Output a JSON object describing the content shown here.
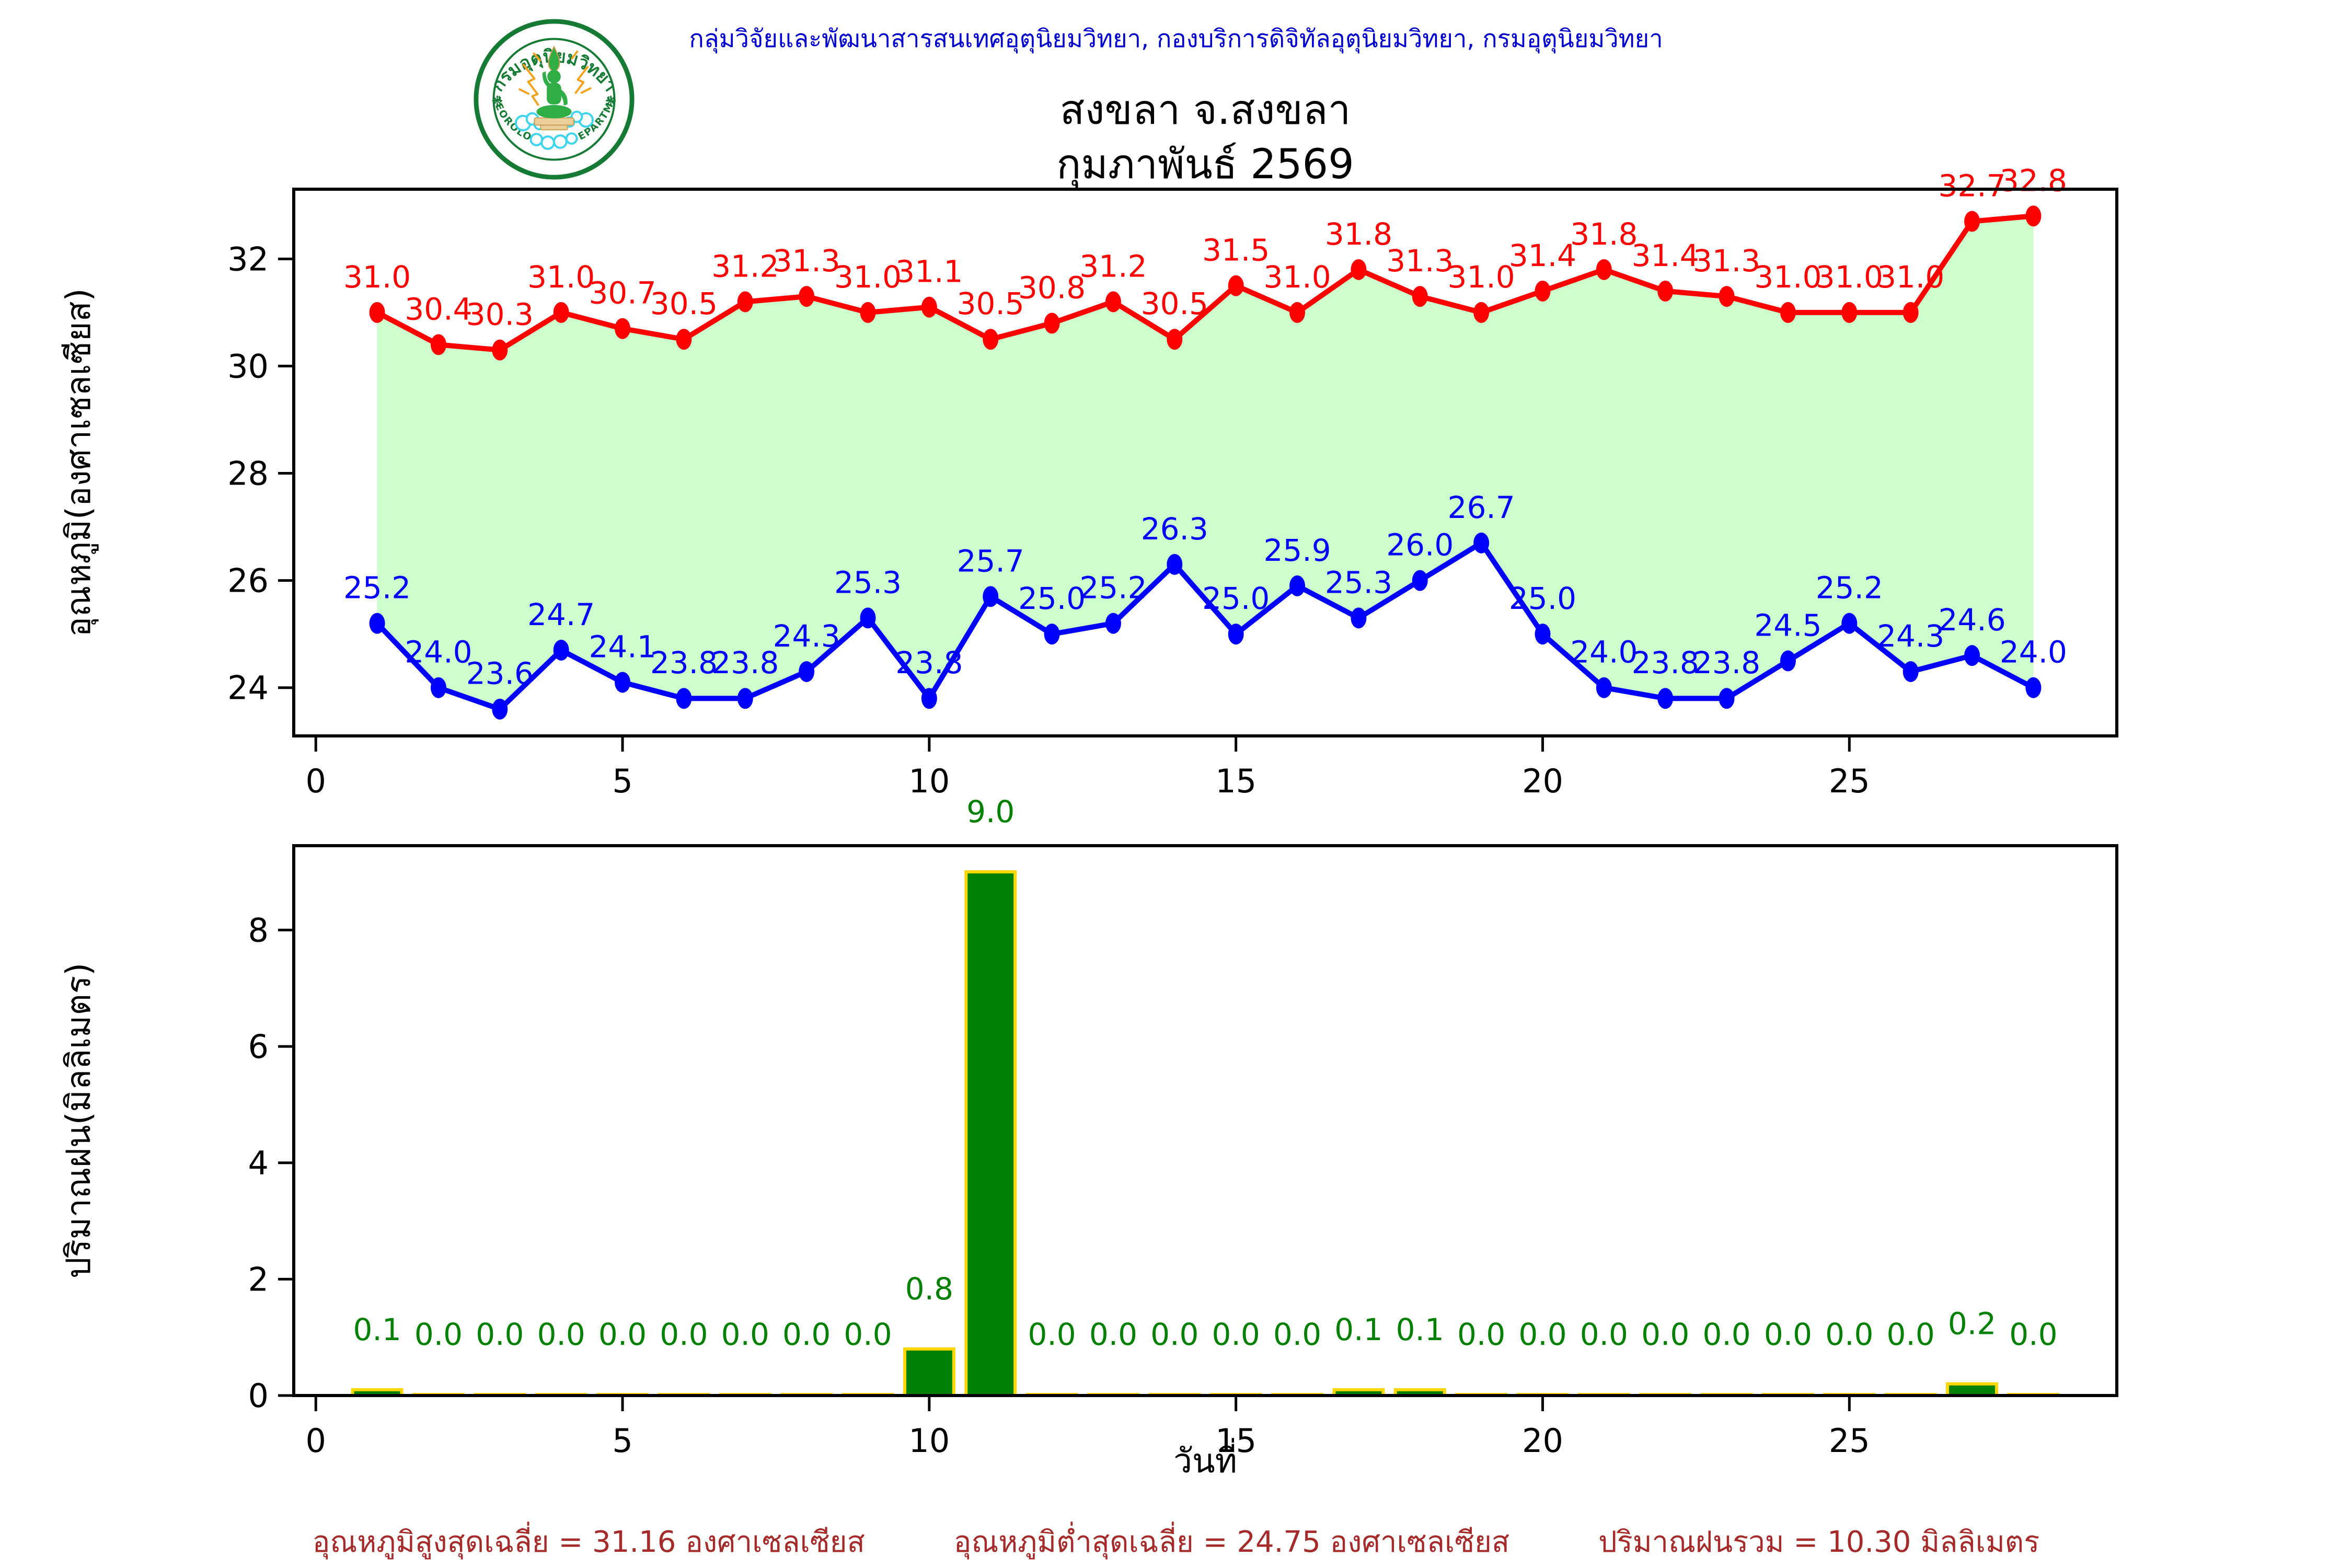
{
  "header": {
    "org_line": "กลุ่มวิจัยและพัฒนาสารสนเทศอุตุนิยมวิทยา, กองบริการดิจิทัลอุตุนิยมวิทยา, กรมอุตุนิยมวิทยา"
  },
  "logo": {
    "top_text": "กรมอุตุนิยมวิทยา",
    "bottom_text": "METEOROLOGICAL DEPARTMENT",
    "ring_color": "#157a33",
    "figure_color": "#2fae46",
    "ray_color": "#f2a31c",
    "cloud_color": "#3fd4ee",
    "pedestal_color": "#ecd09c"
  },
  "title": {
    "line1": "สงขลา จ.สงขลา",
    "line2": "กุมภาพันธ์ 2569"
  },
  "summary": {
    "max_avg": "อุณหภูมิสูงสุดเฉลี่ย = 31.16 องศาเซลเซียส",
    "min_avg": "อุณหภูมิต่ำสุดเฉลี่ย = 24.75 องศาเซลเซียส",
    "rain_total": "ปริมาณฝนรวม = 10.30 มิลลิเมตร"
  },
  "chart_data": [
    {
      "type": "line",
      "title": "",
      "xlabel": "",
      "ylabel": "อุณหภูมิ(องศาเซลเซียส)",
      "x": [
        1,
        2,
        3,
        4,
        5,
        6,
        7,
        8,
        9,
        10,
        11,
        12,
        13,
        14,
        15,
        16,
        17,
        18,
        19,
        20,
        21,
        22,
        23,
        24,
        25,
        26,
        27,
        28
      ],
      "series": [
        {
          "name": "max-temp",
          "color": "#ff0000",
          "values": [
            31.0,
            30.4,
            30.3,
            31.0,
            30.7,
            30.5,
            31.2,
            31.3,
            31.0,
            31.1,
            30.5,
            30.8,
            31.2,
            30.5,
            31.5,
            31.0,
            31.8,
            31.3,
            31.0,
            31.4,
            31.8,
            31.4,
            31.3,
            31.0,
            31.0,
            31.0,
            32.7,
            32.8
          ]
        },
        {
          "name": "min-temp",
          "color": "#0000ff",
          "values": [
            25.2,
            24.0,
            23.6,
            24.7,
            24.1,
            23.8,
            23.8,
            24.3,
            25.3,
            23.8,
            25.7,
            25.0,
            25.2,
            26.3,
            25.0,
            25.9,
            25.3,
            26.0,
            26.7,
            25.0,
            24.0,
            23.8,
            23.8,
            24.5,
            25.2,
            24.3,
            24.6,
            24.0
          ]
        }
      ],
      "fill_between": true,
      "fill_color": "#ccffcc",
      "xticks": [
        0,
        5,
        10,
        15,
        20,
        25
      ],
      "yticks": [
        24,
        26,
        28,
        30,
        32
      ],
      "xlim": [
        -0.36,
        29.36
      ],
      "ylim": [
        23.1,
        33.3
      ],
      "grid": false,
      "legend": "none"
    },
    {
      "type": "bar",
      "title": "",
      "xlabel": "วันที่",
      "ylabel": "ปริมาณฝน(มิลลิเมตร)",
      "x": [
        1,
        2,
        3,
        4,
        5,
        6,
        7,
        8,
        9,
        10,
        11,
        12,
        13,
        14,
        15,
        16,
        17,
        18,
        19,
        20,
        21,
        22,
        23,
        24,
        25,
        26,
        27,
        28
      ],
      "values": [
        0.1,
        0.0,
        0.0,
        0.0,
        0.0,
        0.0,
        0.0,
        0.0,
        0.0,
        0.8,
        9.0,
        0.0,
        0.0,
        0.0,
        0.0,
        0.0,
        0.1,
        0.1,
        0.0,
        0.0,
        0.0,
        0.0,
        0.0,
        0.0,
        0.0,
        0.0,
        0.2,
        0.0
      ],
      "bar_color": "#008000",
      "bar_edge_color": "#ffd700",
      "label_color": "#008000",
      "xticks": [
        0,
        5,
        10,
        15,
        20,
        25
      ],
      "yticks": [
        0,
        2,
        4,
        6,
        8
      ],
      "xlim": [
        -0.36,
        29.36
      ],
      "ylim": [
        0,
        9.45
      ],
      "grid": false,
      "legend": "none"
    }
  ]
}
